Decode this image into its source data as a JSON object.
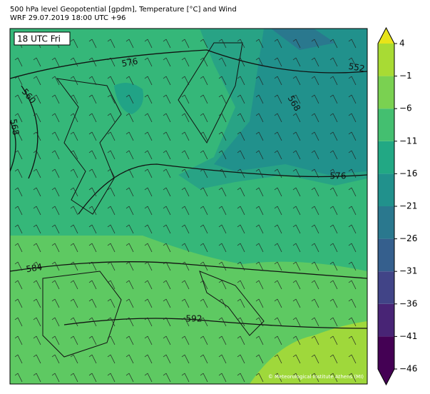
{
  "header": {
    "title": "500 hPa level Geopotential [gpdm], Temperature [°C] and Wind",
    "subtitle": "WRF 29.07.2019 18:00 UTC +96"
  },
  "map": {
    "time_label": "18 UTC Fri",
    "contour_labels": [
      "576",
      "552",
      "568",
      "560",
      "568",
      "576",
      "584",
      "592"
    ],
    "credit": "© Meteorological Institute Athens (MI)"
  },
  "colorbar": {
    "ticks": [
      {
        "value": -46,
        "label": "−46"
      },
      {
        "value": -41,
        "label": "−41"
      },
      {
        "value": -36,
        "label": "−36"
      },
      {
        "value": -31,
        "label": "−31"
      },
      {
        "value": -26,
        "label": "−26"
      },
      {
        "value": -21,
        "label": "−21"
      },
      {
        "value": -16,
        "label": "−16"
      },
      {
        "value": -11,
        "label": "−11"
      },
      {
        "value": -6,
        "label": "−6"
      },
      {
        "value": -1,
        "label": "−1"
      },
      4
    ],
    "colors": [
      "#440154",
      "#482475",
      "#414487",
      "#355f8d",
      "#2a788e",
      "#21918c",
      "#22a884",
      "#44bf70",
      "#7ad151",
      "#a8db34"
    ],
    "under": "#440154",
    "over": "#e8e419"
  }
}
